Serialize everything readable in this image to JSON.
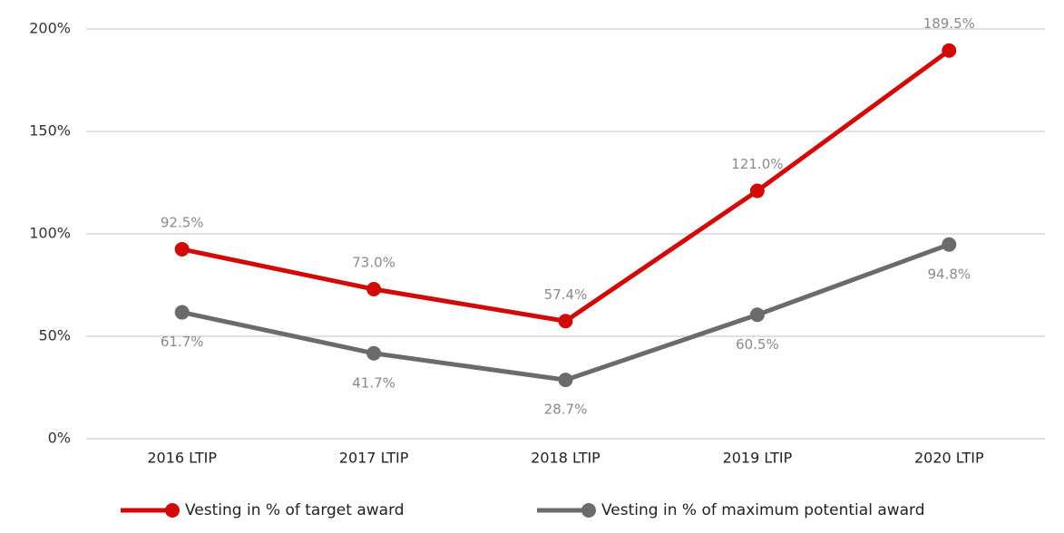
{
  "chart_data": {
    "type": "line",
    "categories": [
      "2016 LTIP",
      "2017 LTIP",
      "2018 LTIP",
      "2019 LTIP",
      "2020 LTIP"
    ],
    "series": [
      {
        "name": "Vesting in % of target award",
        "color": "#d10a0a",
        "values": [
          92.5,
          73.0,
          57.4,
          121.0,
          189.5
        ],
        "value_labels": [
          "92.5%",
          "73.0%",
          "57.4%",
          "121.0%",
          "189.5%"
        ]
      },
      {
        "name": "Vesting in % of maximum potential award",
        "color": "#6b6b6b",
        "values": [
          61.7,
          41.7,
          28.7,
          60.5,
          94.8
        ],
        "value_labels": [
          "61.7%",
          "41.7%",
          "28.7%",
          "60.5%",
          "94.8%"
        ]
      }
    ],
    "ylim": [
      0,
      200
    ],
    "yticks": [
      {
        "value": 0,
        "label": "0%"
      },
      {
        "value": 50,
        "label": "50%"
      },
      {
        "value": 100,
        "label": "100%"
      },
      {
        "value": 150,
        "label": "150%"
      },
      {
        "value": 200,
        "label": "200%"
      }
    ],
    "grid": true,
    "legend": "bottom"
  }
}
